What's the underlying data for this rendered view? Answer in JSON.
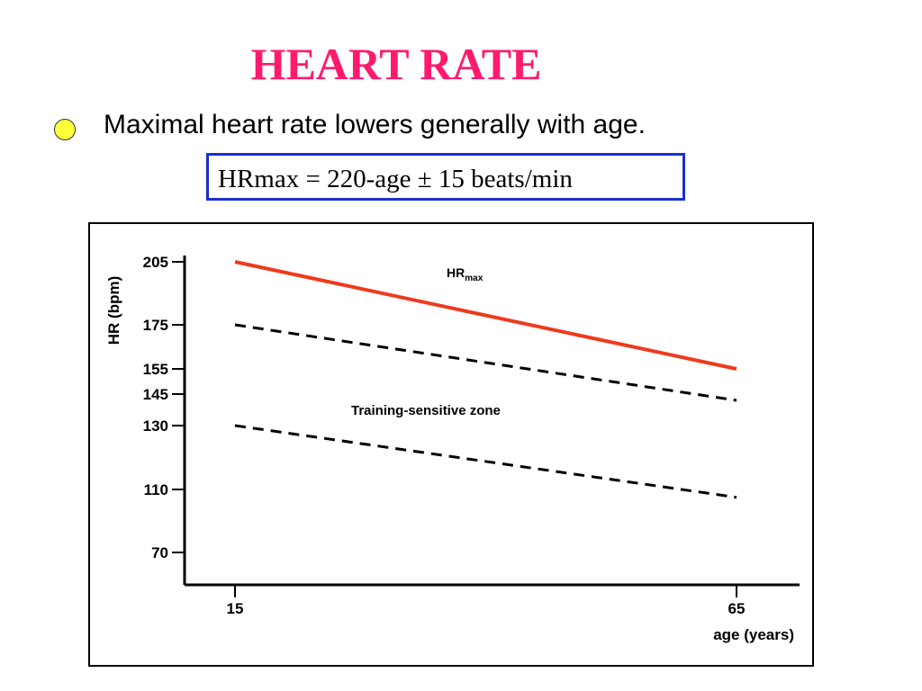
{
  "slide": {
    "title": "HEART RATE",
    "bullet_text": "Maximal heart rate lowers generally with age.",
    "formula": "HRmax = 220-age ± 15 beats/min"
  },
  "colors": {
    "title": "#ff1a6e",
    "bullet": "#ffff3a",
    "formula_border": "#1a2fd1",
    "hrmax_line": "#ee3a1c",
    "zone_lines": "#000000"
  },
  "chart_data": {
    "type": "line",
    "x": [
      15,
      65
    ],
    "x_ticks": [
      15,
      65
    ],
    "y_ticks": [
      205,
      175,
      155,
      145,
      130,
      110,
      70
    ],
    "xlabel": "age (years)",
    "ylabel": "HR (bpm)",
    "series": [
      {
        "name": "HRmax",
        "style": "solid",
        "values": [
          205,
          155
        ]
      },
      {
        "name": "",
        "style": "dashed",
        "values": [
          175,
          142
        ]
      },
      {
        "name": "",
        "style": "dashed",
        "values": [
          130,
          105
        ]
      }
    ],
    "annotations": {
      "hrmax_main": "HR",
      "hrmax_sub": "max",
      "zone": "Training-sensitive zone"
    },
    "grid": false
  }
}
